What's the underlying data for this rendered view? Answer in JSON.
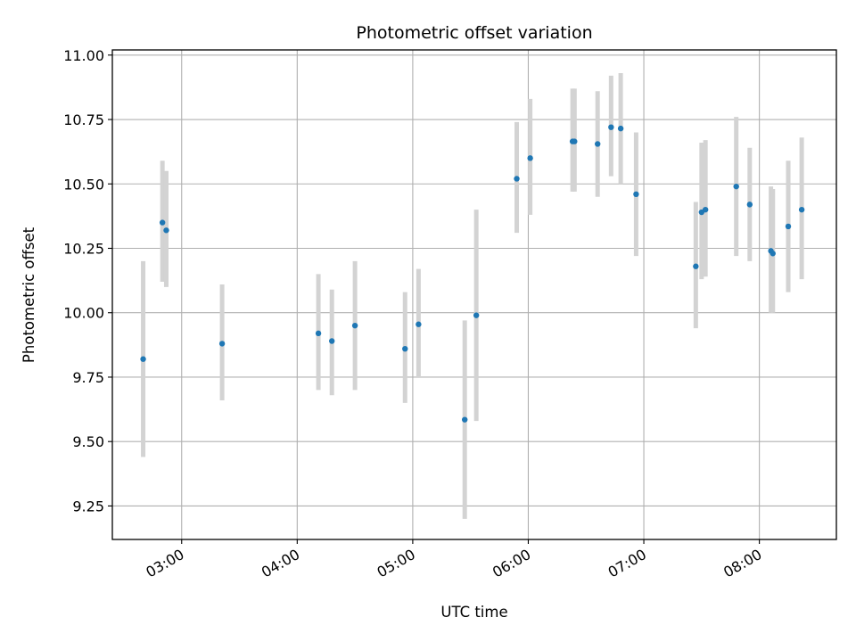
{
  "chart_data": {
    "type": "scatter",
    "title": "Photometric offset variation",
    "xlabel": "UTC time",
    "ylabel": "Photometric offset",
    "x_axis": "time (UTC, hours)",
    "xlim": [
      "02:24",
      "08:40"
    ],
    "ylim": [
      9.12,
      11.02
    ],
    "x_ticks": [
      "03:00",
      "04:00",
      "05:00",
      "06:00",
      "07:00",
      "08:00"
    ],
    "y_ticks": [
      "9.25",
      "9.50",
      "9.75",
      "10.00",
      "10.25",
      "10.50",
      "10.75",
      "11.00"
    ],
    "grid": true,
    "legend": "none",
    "colors": {
      "points": "#1f77b4",
      "error_bars": "#d3d3d3",
      "grid": "#b0b0b0"
    },
    "points": [
      {
        "x": "02:40",
        "y": 9.82,
        "ylo": 9.44,
        "yhi": 10.2
      },
      {
        "x": "02:50",
        "y": 10.35,
        "ylo": 10.12,
        "yhi": 10.59
      },
      {
        "x": "02:52",
        "y": 10.32,
        "ylo": 10.1,
        "yhi": 10.55
      },
      {
        "x": "03:21",
        "y": 9.88,
        "ylo": 9.66,
        "yhi": 10.11
      },
      {
        "x": "04:11",
        "y": 9.92,
        "ylo": 9.7,
        "yhi": 10.15
      },
      {
        "x": "04:18",
        "y": 9.89,
        "ylo": 9.68,
        "yhi": 10.09
      },
      {
        "x": "04:30",
        "y": 9.95,
        "ylo": 9.7,
        "yhi": 10.2
      },
      {
        "x": "04:56",
        "y": 9.86,
        "ylo": 9.65,
        "yhi": 10.08
      },
      {
        "x": "05:03",
        "y": 9.955,
        "ylo": 9.75,
        "yhi": 10.17
      },
      {
        "x": "05:27",
        "y": 9.585,
        "ylo": 9.2,
        "yhi": 9.97
      },
      {
        "x": "05:33",
        "y": 9.99,
        "ylo": 9.58,
        "yhi": 10.4
      },
      {
        "x": "05:54",
        "y": 10.52,
        "ylo": 10.31,
        "yhi": 10.74
      },
      {
        "x": "06:01",
        "y": 10.6,
        "ylo": 10.38,
        "yhi": 10.83
      },
      {
        "x": "06:23",
        "y": 10.665,
        "ylo": 10.47,
        "yhi": 10.87
      },
      {
        "x": "06:24",
        "y": 10.665,
        "ylo": 10.47,
        "yhi": 10.87
      },
      {
        "x": "06:36",
        "y": 10.655,
        "ylo": 10.45,
        "yhi": 10.86
      },
      {
        "x": "06:43",
        "y": 10.72,
        "ylo": 10.53,
        "yhi": 10.92
      },
      {
        "x": "06:48",
        "y": 10.715,
        "ylo": 10.5,
        "yhi": 10.93
      },
      {
        "x": "06:56",
        "y": 10.46,
        "ylo": 10.22,
        "yhi": 10.7
      },
      {
        "x": "07:27",
        "y": 10.18,
        "ylo": 9.94,
        "yhi": 10.43
      },
      {
        "x": "07:30",
        "y": 10.39,
        "ylo": 10.13,
        "yhi": 10.66
      },
      {
        "x": "07:32",
        "y": 10.4,
        "ylo": 10.14,
        "yhi": 10.67
      },
      {
        "x": "07:48",
        "y": 10.49,
        "ylo": 10.22,
        "yhi": 10.76
      },
      {
        "x": "07:55",
        "y": 10.42,
        "ylo": 10.2,
        "yhi": 10.64
      },
      {
        "x": "08:06",
        "y": 10.24,
        "ylo": 10.0,
        "yhi": 10.49
      },
      {
        "x": "08:07",
        "y": 10.23,
        "ylo": 10.0,
        "yhi": 10.48
      },
      {
        "x": "08:15",
        "y": 10.335,
        "ylo": 10.08,
        "yhi": 10.59
      },
      {
        "x": "08:22",
        "y": 10.4,
        "ylo": 10.13,
        "yhi": 10.68
      }
    ]
  }
}
